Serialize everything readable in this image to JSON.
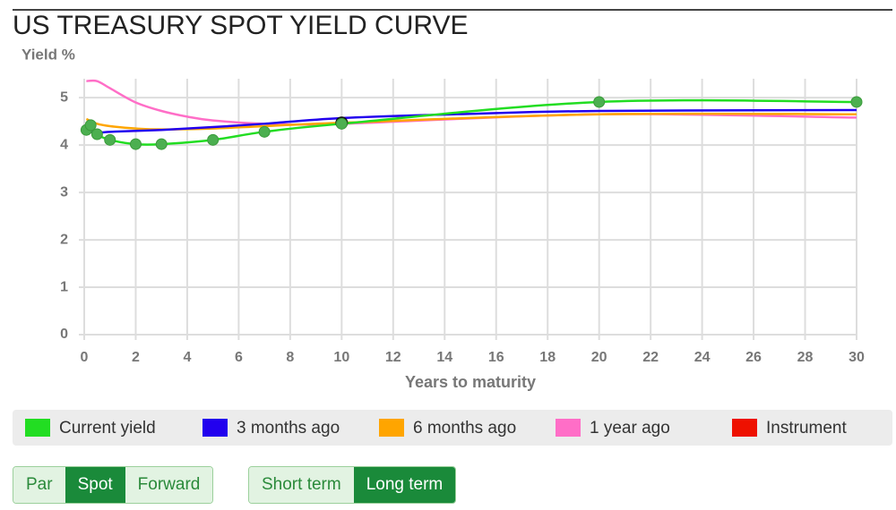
{
  "chart_data": {
    "type": "line",
    "title": "US TREASURY SPOT YIELD CURVE",
    "y_label": "Yield %",
    "x_label": "Years to maturity",
    "xlim": [
      0,
      30
    ],
    "xticks": [
      0,
      2,
      4,
      6,
      8,
      10,
      12,
      14,
      16,
      18,
      20,
      22,
      24,
      26,
      28,
      30
    ],
    "ylim": [
      0,
      5.4
    ],
    "yticks": [
      0,
      1,
      2,
      3,
      4,
      5
    ],
    "grid": true,
    "series": [
      {
        "name": "Current yield",
        "color": "#22dd22",
        "markers": true,
        "line": true,
        "x": [
          0.083,
          0.25,
          0.5,
          1,
          2,
          3,
          5,
          7,
          10,
          20,
          30
        ],
        "values": [
          4.32,
          4.42,
          4.23,
          4.11,
          4.02,
          4.02,
          4.11,
          4.28,
          4.45,
          4.91,
          4.91
        ]
      },
      {
        "name": "3 months ago",
        "color": "#2200ee",
        "markers": false,
        "line": true,
        "x": [
          0.083,
          0.5,
          1,
          3,
          5,
          7,
          10,
          15,
          20,
          30
        ],
        "values": [
          4.3,
          4.26,
          4.28,
          4.32,
          4.38,
          4.45,
          4.57,
          4.66,
          4.72,
          4.74
        ]
      },
      {
        "name": "6 months ago",
        "color": "#ffa500",
        "markers": false,
        "line": true,
        "x": [
          0.083,
          0.5,
          1,
          2,
          3,
          5,
          7,
          10,
          20,
          30
        ],
        "values": [
          4.55,
          4.45,
          4.4,
          4.35,
          4.33,
          4.35,
          4.4,
          4.47,
          4.65,
          4.65
        ]
      },
      {
        "name": "1 year ago",
        "color": "#ff6ec7",
        "markers": false,
        "line": true,
        "x": [
          0.083,
          0.5,
          1,
          2,
          3,
          4,
          5,
          7,
          10,
          20,
          30
        ],
        "values": [
          5.35,
          5.35,
          5.2,
          4.9,
          4.72,
          4.6,
          4.52,
          4.45,
          4.45,
          4.65,
          4.58
        ]
      },
      {
        "name": "Instrument",
        "color": "#ee1100",
        "markers": true,
        "line": false,
        "x": [
          10
        ],
        "values": [
          4.47
        ]
      }
    ]
  },
  "controls": {
    "groups": [
      [
        {
          "label": "Par",
          "active": false
        },
        {
          "label": "Spot",
          "active": true
        },
        {
          "label": "Forward",
          "active": false
        }
      ],
      [
        {
          "label": "Short term",
          "active": false
        },
        {
          "label": "Long term",
          "active": true
        }
      ]
    ]
  }
}
